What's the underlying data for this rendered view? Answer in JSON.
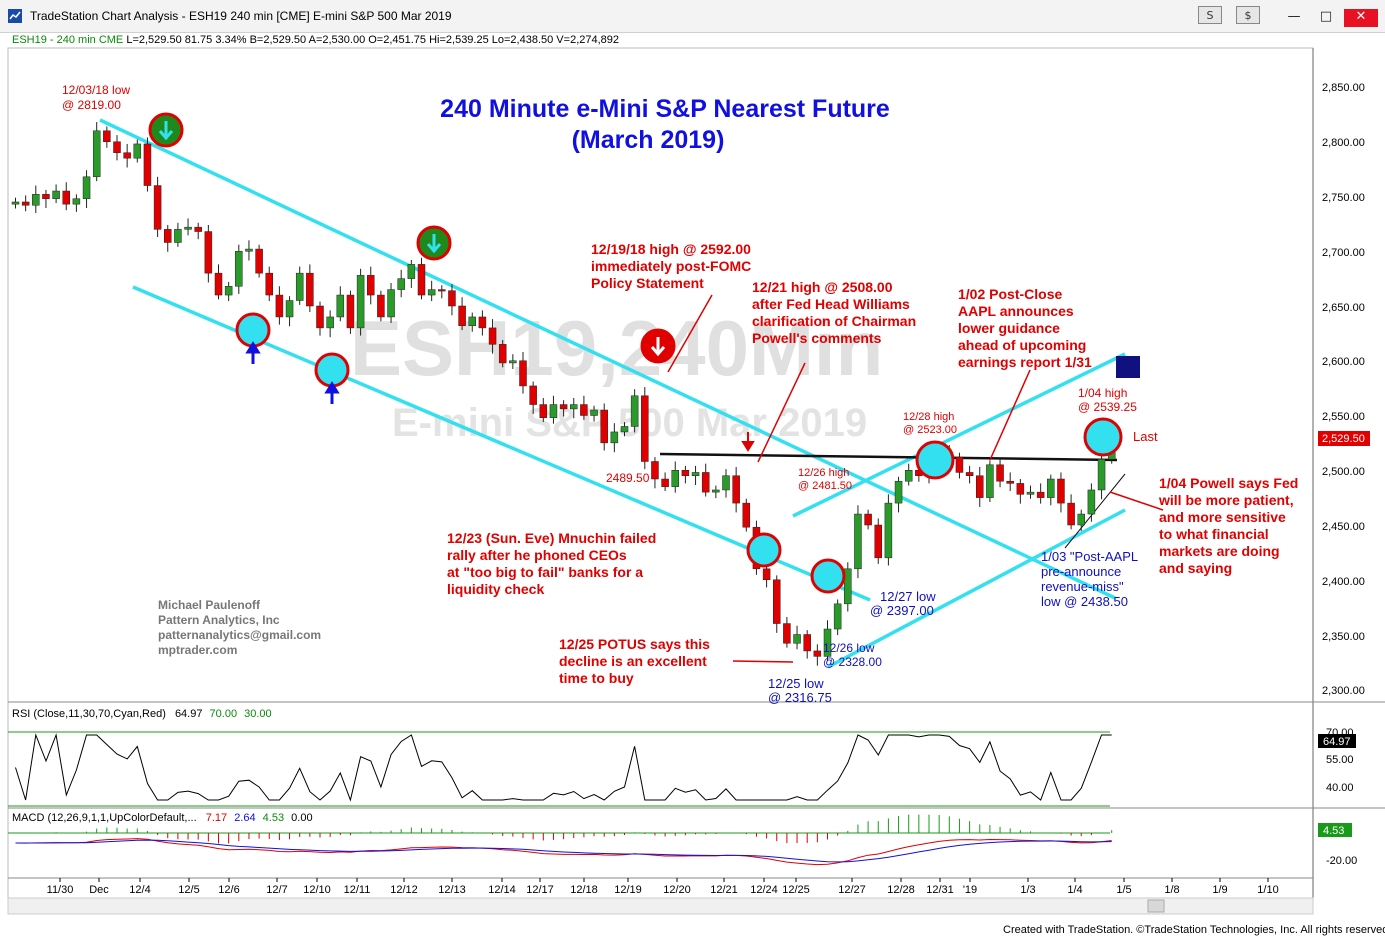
{
  "window": {
    "title": "TradeStation Chart Analysis - ESH19 240 min [CME] E-mini S&P 500 Mar 2019",
    "buttons": [
      "S",
      "$"
    ]
  },
  "infobar": {
    "symbol": "ESH19 - 240 min  CME",
    "values": "L=2,529.50  81.75  3.34%  B=2,529.50  A=2,530.00  O=2,451.75  Hi=2,539.25  Lo=2,438.50  V=2,274,892"
  },
  "chart_title": [
    "240 Minute e-Mini S&P Nearest Future",
    "(March 2019)"
  ],
  "watermark": [
    "ESH19,240Min",
    "E-mini S&P 500 Mar 2019"
  ],
  "author": [
    "Michael Paulenoff",
    "Pattern Analytics, Inc",
    "patternanalytics@gmail.com",
    "mptrader.com"
  ],
  "annotations": {
    "low_1203": [
      "12/03/18 low",
      "@ 2819.00"
    ],
    "high_1219": [
      "12/19/18 high @ 2592.00",
      "immediately post-FOMC",
      "Policy Statement"
    ],
    "high_1221": [
      "12/21 high @ 2508.00",
      "after Fed Head Williams",
      "clarification of Chairman",
      "Powell's comments"
    ],
    "aapl_0102": [
      "1/02 Post-Close",
      "AAPL announces",
      "lower guidance",
      "ahead of upcoming",
      "earnings report 1/31"
    ],
    "high_0104": [
      "1/04 high",
      "@ 2539.25"
    ],
    "last": "Last",
    "powell_0104": [
      "1/04 Powell says Fed",
      "will be more patient,",
      "and more sensitive",
      "to what financial",
      "markets are doing",
      "and saying"
    ],
    "mnuchin": [
      "12/23 (Sun. Eve) Mnuchin failed",
      "rally after he phoned CEOs",
      "at \"too big to fail\" banks for a",
      "liquidity check"
    ],
    "potus": [
      "12/25 POTUS says this",
      "decline is an excellent",
      "time to buy"
    ],
    "level_2489": "2489.50",
    "high_1226": [
      "12/26 high",
      "@ 2481.50"
    ],
    "high_1228": [
      "12/28 high",
      "@ 2523.00"
    ],
    "low_1227": [
      "12/27 low",
      "@ 2397.00"
    ],
    "low_1226": [
      "12/26 low",
      "@ 2328.00"
    ],
    "low_1225": [
      "12/25 low",
      "@ 2316.75"
    ],
    "low_0103": [
      "1/03 \"Post-AAPL",
      "pre-announce",
      "revenue-miss\"",
      "low @ 2438.50"
    ]
  },
  "price_axis": {
    "ticks": [
      "2,850.00",
      "2,800.00",
      "2,750.00",
      "2,700.00",
      "2,650.00",
      "2,600.00",
      "2,550.00",
      "2,500.00",
      "2,450.00",
      "2,400.00",
      "2,350.00",
      "2,300.00"
    ],
    "last_value": "2,529.50"
  },
  "rsi": {
    "label": "RSI (Close,11,30,70,Cyan,Red)",
    "values": [
      "64.97",
      "70.00",
      "30.00"
    ],
    "ticks": [
      "70.00",
      "55.00",
      "40.00"
    ],
    "last_value": "64.97"
  },
  "macd": {
    "label": "MACD (12,26,9,1,1,UpColorDefault,...",
    "values": [
      "7.17",
      "2.64",
      "4.53",
      "0.00"
    ],
    "ticks": [
      "-20.00"
    ],
    "last_value": "4.53"
  },
  "date_axis": [
    "11/30",
    "Dec",
    "12/4",
    "12/5",
    "12/6",
    "12/7",
    "12/10",
    "12/11",
    "12/12",
    "12/13",
    "12/14",
    "12/17",
    "12/18",
    "12/19",
    "12/20",
    "12/21",
    "12/24",
    "12/25",
    "12/27",
    "12/28",
    "12/31",
    "'19",
    "1/3",
    "1/4",
    "1/5",
    "1/8",
    "1/9",
    "1/10"
  ],
  "footer": "Created with TradeStation. ©TradeStation Technologies, Inc. All rights reserved.",
  "colors": {
    "up": "#2a9a2a",
    "down": "#e00000",
    "channel": "#33e0f0",
    "title": "#1010e0",
    "annotation": "#e00000",
    "annotation_blue": "#1010c0"
  },
  "chart_data": {
    "type": "candlestick",
    "ylim": [
      2290,
      2870
    ],
    "closes": [
      2745,
      2742,
      2752,
      2748,
      2755,
      2743,
      2748,
      2768,
      2810,
      2800,
      2790,
      2785,
      2798,
      2760,
      2720,
      2708,
      2720,
      2722,
      2718,
      2680,
      2660,
      2668,
      2700,
      2702,
      2680,
      2660,
      2640,
      2655,
      2680,
      2650,
      2630,
      2640,
      2660,
      2630,
      2678,
      2660,
      2640,
      2665,
      2675,
      2688,
      2660,
      2665,
      2664,
      2650,
      2632,
      2640,
      2630,
      2615,
      2598,
      2600,
      2577,
      2560,
      2548,
      2560,
      2556,
      2560,
      2550,
      2555,
      2525,
      2535,
      2540,
      2568,
      2508,
      2492,
      2485,
      2500,
      2495,
      2498,
      2480,
      2482,
      2495,
      2470,
      2448,
      2410,
      2400,
      2360,
      2342,
      2350,
      2335,
      2330,
      2355,
      2378,
      2410,
      2460,
      2450,
      2420,
      2470,
      2490,
      2500,
      2495,
      2510,
      2515,
      2512,
      2498,
      2495,
      2475,
      2505,
      2490,
      2488,
      2478,
      2480,
      2475,
      2492,
      2470,
      2450,
      2460,
      2482,
      2510,
      2529.5
    ]
  }
}
